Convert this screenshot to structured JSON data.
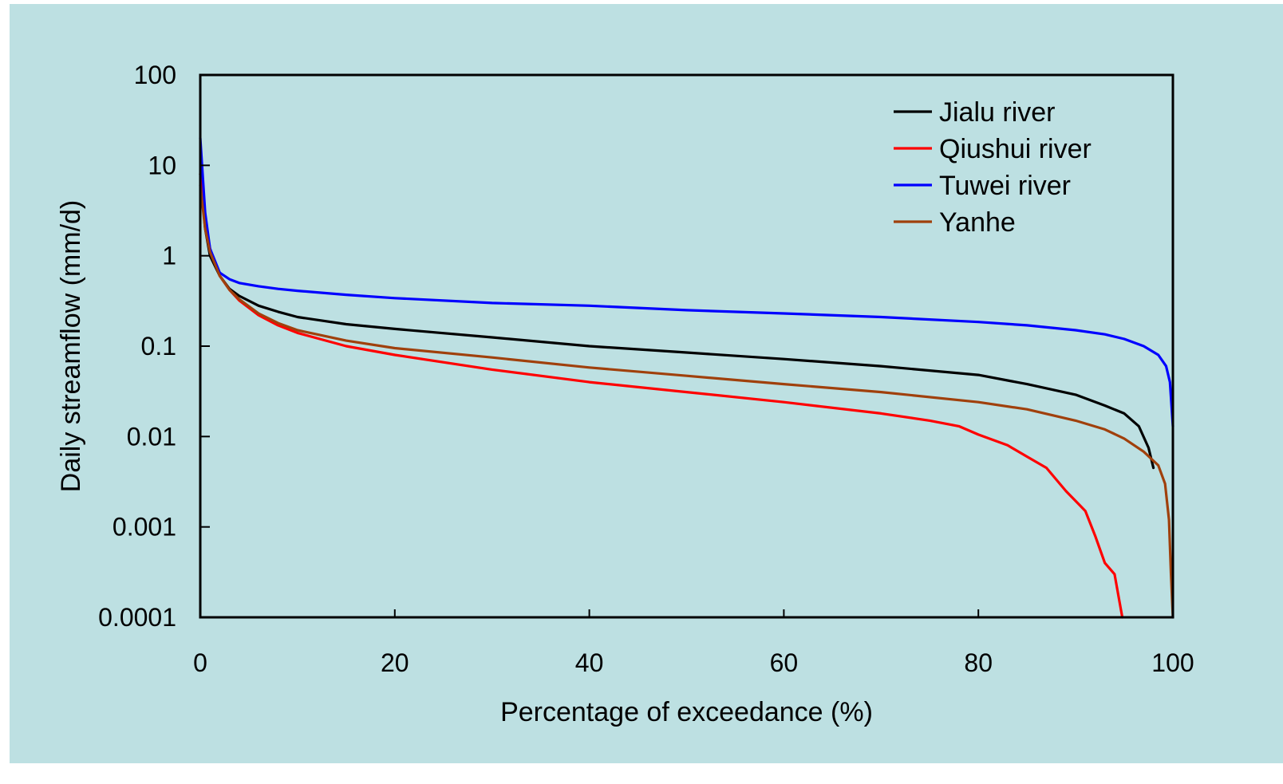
{
  "chart_data": {
    "type": "line",
    "xlabel": "Percentage of exceedance (%)",
    "ylabel": "Daily streamflow (mm/d)",
    "xlim": [
      0,
      100
    ],
    "ylim": [
      0.0001,
      100
    ],
    "yscale": "log",
    "grid": false,
    "legend_position": "top-right",
    "x_ticks": [
      0,
      20,
      40,
      60,
      80,
      100
    ],
    "x_tick_labels": [
      "0",
      "20",
      "40",
      "60",
      "80",
      "100"
    ],
    "y_ticks": [
      0.0001,
      0.001,
      0.01,
      0.1,
      1,
      10,
      100
    ],
    "y_tick_labels": [
      "0.0001",
      "0.001",
      "0.01",
      "0.1",
      "1",
      "10",
      "100"
    ],
    "series": [
      {
        "name": "Jialu river",
        "color": "#000000",
        "points": [
          [
            0,
            8
          ],
          [
            0.5,
            2
          ],
          [
            1,
            1
          ],
          [
            2,
            0.6
          ],
          [
            3,
            0.43
          ],
          [
            4,
            0.36
          ],
          [
            6,
            0.28
          ],
          [
            8,
            0.24
          ],
          [
            10,
            0.21
          ],
          [
            15,
            0.175
          ],
          [
            20,
            0.155
          ],
          [
            30,
            0.125
          ],
          [
            40,
            0.1
          ],
          [
            50,
            0.085
          ],
          [
            60,
            0.072
          ],
          [
            70,
            0.06
          ],
          [
            80,
            0.048
          ],
          [
            85,
            0.038
          ],
          [
            90,
            0.029
          ],
          [
            93,
            0.022
          ],
          [
            95,
            0.018
          ],
          [
            96.5,
            0.013
          ],
          [
            97.5,
            0.0075
          ],
          [
            98,
            0.0045
          ]
        ]
      },
      {
        "name": "Qiushui river",
        "color": "#ff0000",
        "points": [
          [
            0,
            8
          ],
          [
            0.5,
            2.5
          ],
          [
            1,
            1.2
          ],
          [
            2,
            0.6
          ],
          [
            3,
            0.42
          ],
          [
            4,
            0.32
          ],
          [
            6,
            0.22
          ],
          [
            8,
            0.17
          ],
          [
            10,
            0.14
          ],
          [
            15,
            0.1
          ],
          [
            20,
            0.08
          ],
          [
            30,
            0.055
          ],
          [
            40,
            0.04
          ],
          [
            50,
            0.031
          ],
          [
            60,
            0.024
          ],
          [
            70,
            0.018
          ],
          [
            75,
            0.015
          ],
          [
            78,
            0.013
          ],
          [
            80,
            0.0105
          ],
          [
            83,
            0.008
          ],
          [
            85,
            0.006
          ],
          [
            87,
            0.0045
          ],
          [
            89,
            0.0025
          ],
          [
            91,
            0.0015
          ],
          [
            92,
            0.0008
          ],
          [
            93,
            0.0004
          ],
          [
            94,
            0.0003
          ],
          [
            94.5,
            0.00015
          ],
          [
            94.8,
            0.0001
          ]
        ]
      },
      {
        "name": "Tuwei river",
        "color": "#0000ff",
        "points": [
          [
            0,
            20
          ],
          [
            0.5,
            3
          ],
          [
            1,
            1.2
          ],
          [
            2,
            0.65
          ],
          [
            3,
            0.55
          ],
          [
            4,
            0.5
          ],
          [
            6,
            0.46
          ],
          [
            8,
            0.43
          ],
          [
            10,
            0.41
          ],
          [
            15,
            0.37
          ],
          [
            20,
            0.34
          ],
          [
            30,
            0.3
          ],
          [
            40,
            0.28
          ],
          [
            50,
            0.25
          ],
          [
            60,
            0.23
          ],
          [
            70,
            0.21
          ],
          [
            80,
            0.185
          ],
          [
            85,
            0.17
          ],
          [
            90,
            0.15
          ],
          [
            93,
            0.135
          ],
          [
            95,
            0.12
          ],
          [
            97,
            0.1
          ],
          [
            98.5,
            0.08
          ],
          [
            99.3,
            0.06
          ],
          [
            99.7,
            0.04
          ],
          [
            100,
            0.013
          ]
        ]
      },
      {
        "name": "Yanhe",
        "color": "#a0400c",
        "points": [
          [
            0,
            6
          ],
          [
            0.5,
            2
          ],
          [
            1,
            1.1
          ],
          [
            2,
            0.6
          ],
          [
            3,
            0.42
          ],
          [
            4,
            0.33
          ],
          [
            6,
            0.23
          ],
          [
            8,
            0.18
          ],
          [
            10,
            0.15
          ],
          [
            15,
            0.115
          ],
          [
            20,
            0.095
          ],
          [
            30,
            0.075
          ],
          [
            40,
            0.058
          ],
          [
            50,
            0.047
          ],
          [
            60,
            0.038
          ],
          [
            70,
            0.031
          ],
          [
            80,
            0.024
          ],
          [
            85,
            0.02
          ],
          [
            90,
            0.015
          ],
          [
            93,
            0.012
          ],
          [
            95,
            0.0095
          ],
          [
            97,
            0.0068
          ],
          [
            98.5,
            0.0048
          ],
          [
            99.2,
            0.003
          ],
          [
            99.6,
            0.0012
          ],
          [
            99.8,
            0.0003
          ],
          [
            100,
            0.0001
          ]
        ]
      }
    ]
  }
}
